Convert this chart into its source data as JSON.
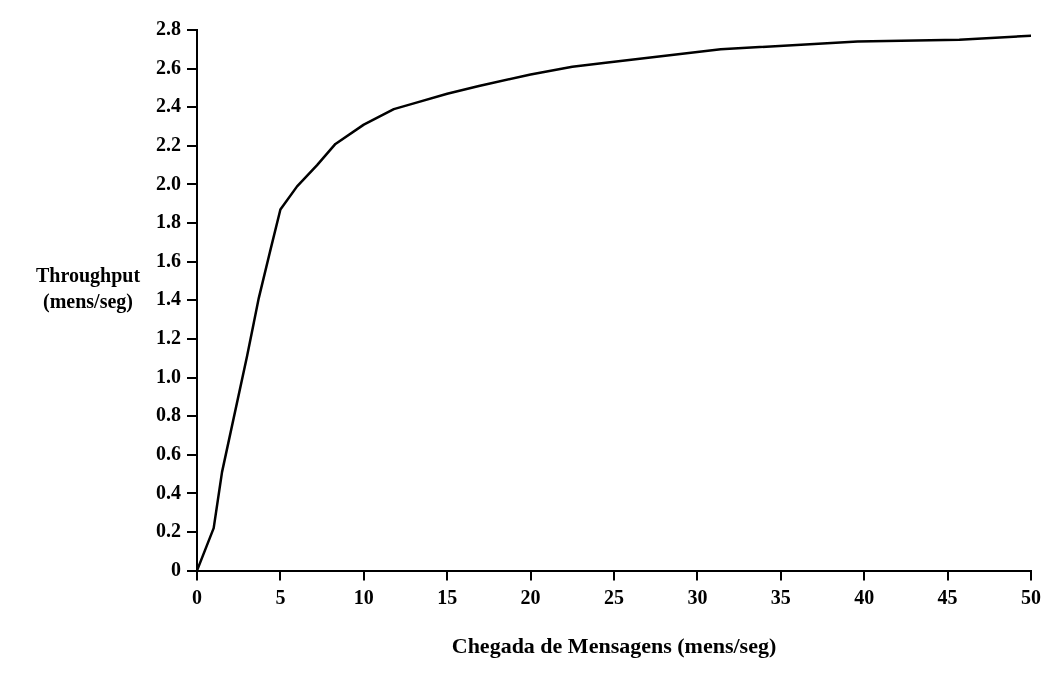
{
  "chart_data": {
    "type": "line",
    "xlabel": "Chegada de Mensagens (mens/seg)",
    "ylabel": "Throughput\n(mens/seg)",
    "x": [
      0,
      1,
      1.5,
      3,
      3.7,
      4.4,
      5,
      6,
      7.2,
      8.3,
      10,
      11.8,
      13,
      15,
      16.9,
      20,
      22.5,
      24.5,
      31.4,
      39.6,
      45.7,
      50
    ],
    "series": [
      {
        "color": "#000000",
        "values": [
          0,
          0.22,
          0.51,
          1.11,
          1.41,
          1.66,
          1.87,
          1.99,
          2.1,
          2.21,
          2.31,
          2.39,
          2.42,
          2.47,
          2.51,
          2.57,
          2.61,
          2.63,
          2.7,
          2.74,
          2.75,
          2.77
        ]
      }
    ],
    "xlim": [
      0,
      50
    ],
    "xticks": [
      0,
      5,
      10,
      15,
      20,
      25,
      30,
      35,
      40,
      45,
      50
    ],
    "ylim": [
      0,
      2.8
    ],
    "yticks": [
      0,
      0.2,
      0.4,
      0.6,
      0.8,
      {
        "value": 1,
        "label": "1.0"
      },
      1.2,
      1.4,
      1.6,
      1.8,
      {
        "value": 2,
        "label": "2.0"
      },
      2.2,
      2.4,
      2.6,
      2.8
    ],
    "grid": false,
    "legend": false,
    "marker": "none",
    "line_style": "solid"
  }
}
